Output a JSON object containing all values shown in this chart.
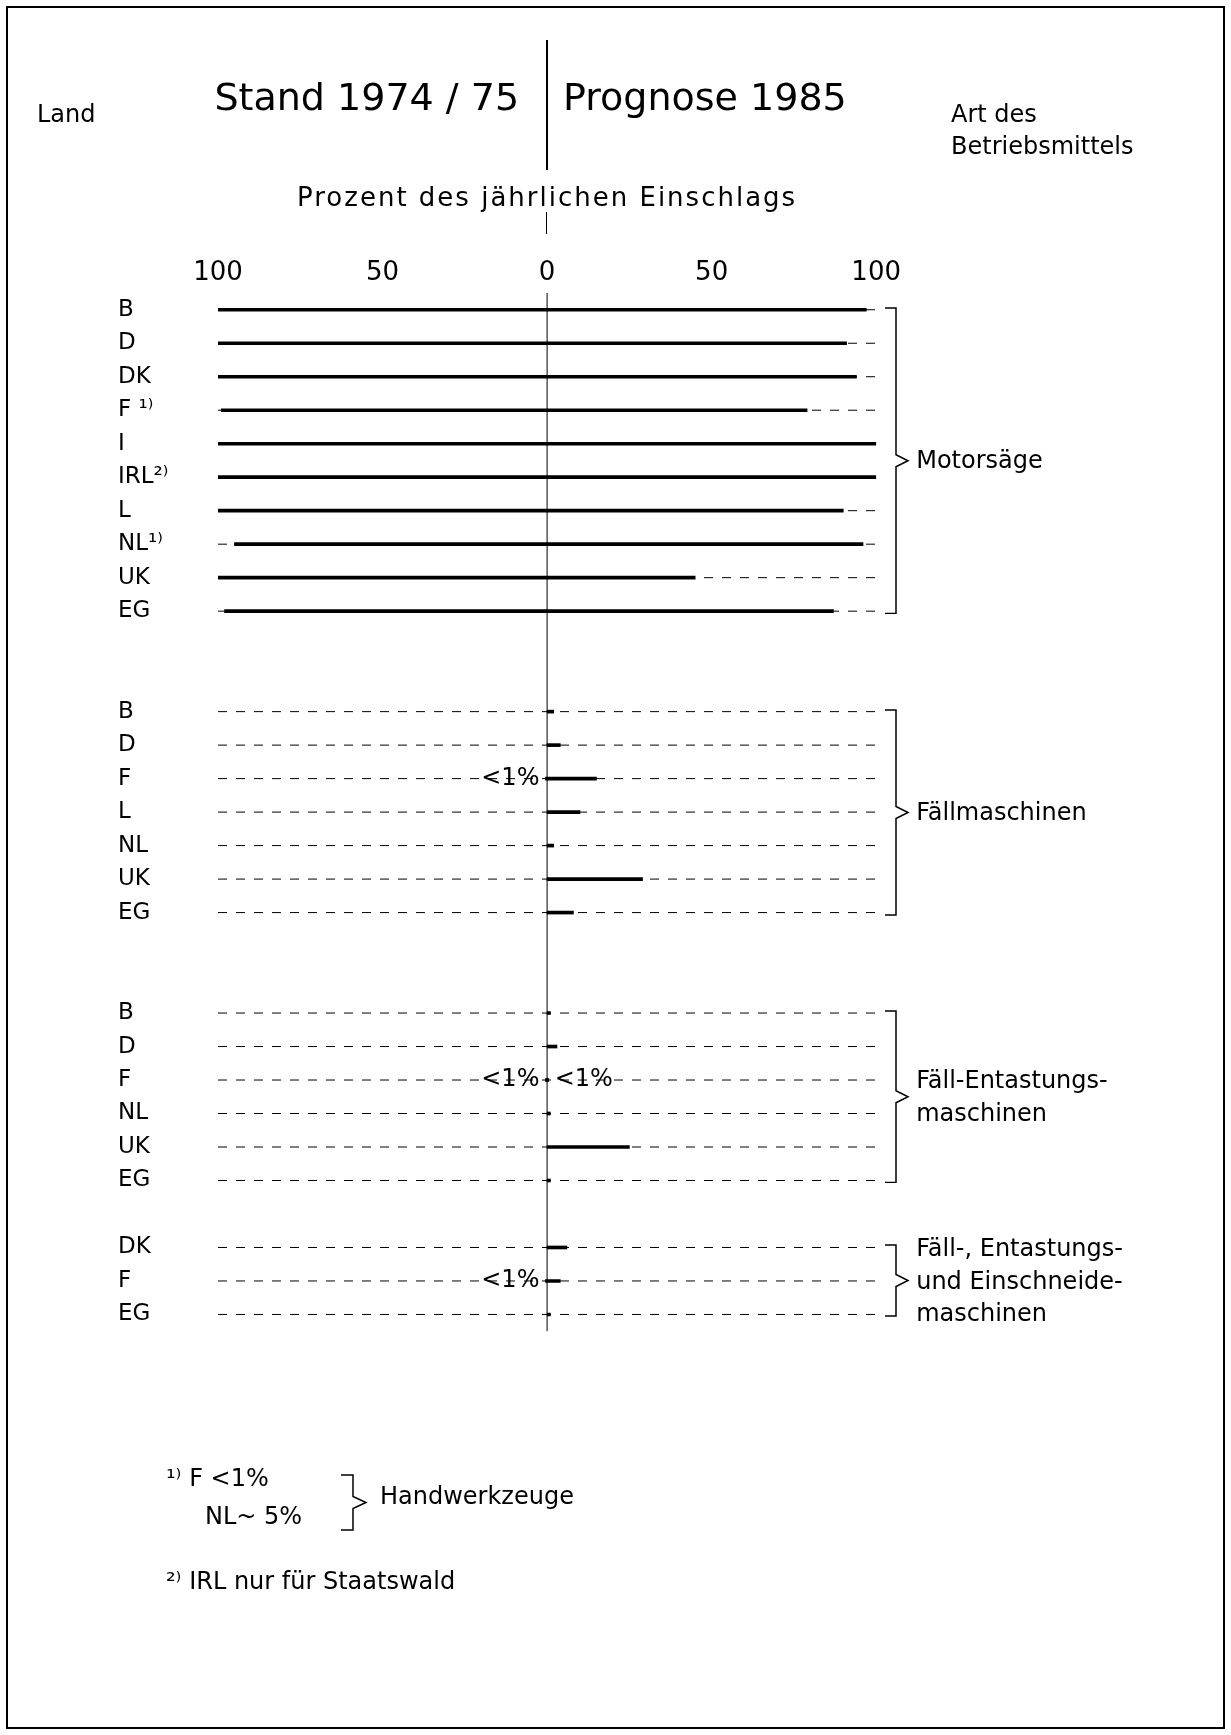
{
  "chart_data": {
    "type": "bar",
    "orientation": "horizontal",
    "xlabel": "Prozent des jährlichen Einschlags",
    "categories": [
      "B",
      "D",
      "DK",
      "F ¹⁾",
      "I",
      "IRL²⁾",
      "L",
      "NL¹⁾",
      "UK",
      "EG",
      null,
      null,
      "B",
      "D",
      "F",
      "L",
      "NL",
      "UK",
      "EG",
      null,
      null,
      "B",
      "D",
      "F",
      "NL",
      "UK",
      "EG",
      null,
      "DK",
      "F",
      "EG"
    ],
    "series": [
      {
        "color": "#000000",
        "values": [
          -100,
          -100,
          -100,
          -99,
          -100,
          -100,
          -100,
          -95,
          -100,
          -98,
          null,
          null,
          null,
          null,
          -0.5,
          null,
          null,
          null,
          null,
          null,
          null,
          null,
          null,
          -0.5,
          null,
          null,
          null,
          null,
          null,
          -0.5,
          null
        ],
        "value_labels": [
          null,
          null,
          null,
          null,
          null,
          null,
          null,
          null,
          null,
          null,
          null,
          null,
          null,
          null,
          "<1%",
          null,
          null,
          null,
          null,
          null,
          null,
          null,
          null,
          "<1%",
          null,
          null,
          null,
          null,
          null,
          "<1%",
          null
        ]
      },
      {
        "color": "#000000",
        "values": [
          97,
          91,
          94,
          79,
          100,
          100,
          90,
          96,
          45,
          87,
          null,
          null,
          2,
          4,
          15,
          10,
          2,
          29,
          8,
          null,
          null,
          1,
          3,
          0.5,
          1,
          25,
          1,
          null,
          6,
          4,
          1
        ],
        "value_labels": [
          null,
          null,
          null,
          null,
          null,
          null,
          null,
          null,
          null,
          null,
          null,
          null,
          null,
          null,
          null,
          null,
          null,
          null,
          null,
          null,
          null,
          null,
          null,
          "<1%",
          null,
          null,
          null,
          null,
          null,
          null,
          null
        ]
      }
    ],
    "xlim": [
      -100,
      100
    ],
    "xticks": [
      {
        "value": -100,
        "label": "100"
      },
      {
        "value": -50,
        "label": "50"
      },
      0,
      50,
      100
    ],
    "grid": "y",
    "annotations": [
      "Land",
      "Stand 1974 / 75",
      "Prognose 1985",
      "Art des\nBetriebsmittels",
      "Motorsäge",
      "Fällmaschinen",
      "Fäll-Entastungs-\nmaschinen",
      "Fäll-, Entastungs-\nund Einschneide-\nmaschinen",
      "¹⁾ F <1%",
      "NL~ 5%",
      "Handwerkzeuge",
      "²⁾ IRL nur für Staatswald"
    ]
  }
}
